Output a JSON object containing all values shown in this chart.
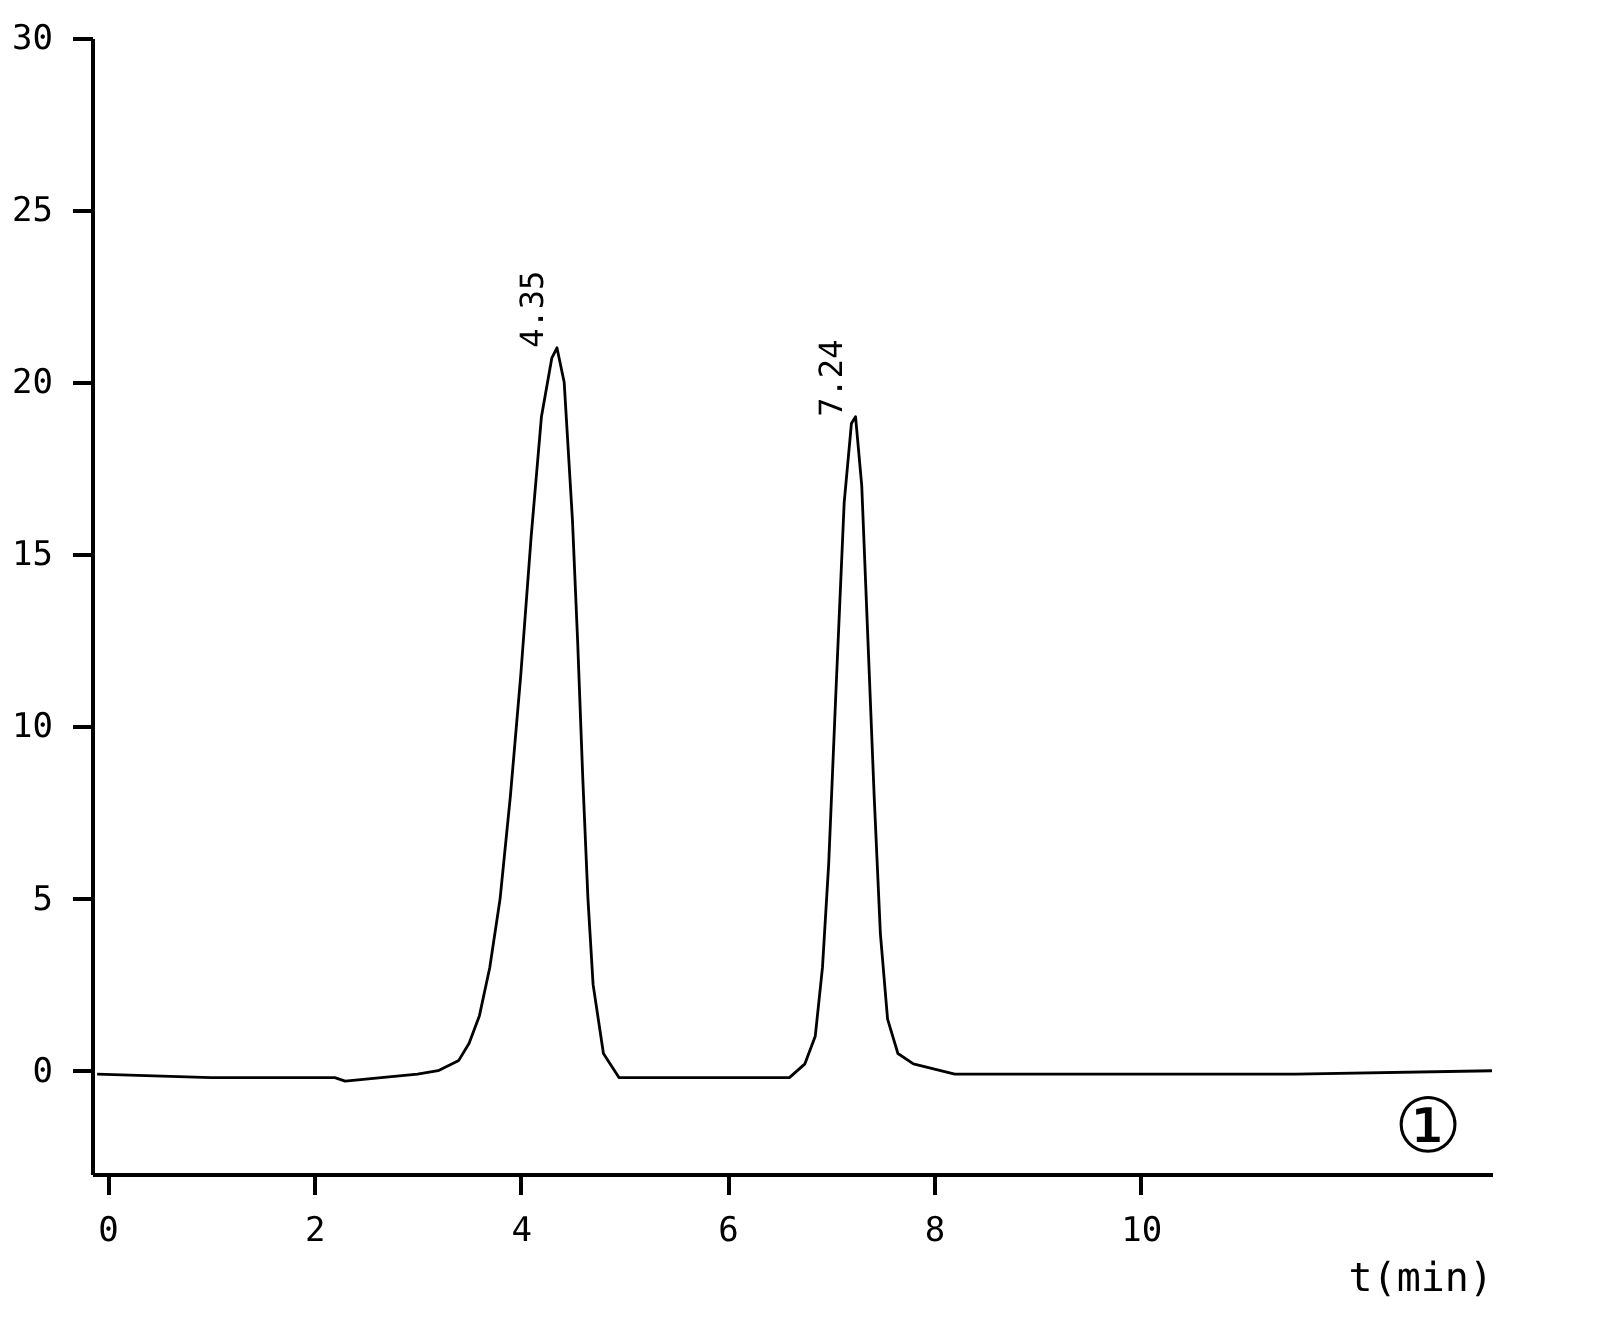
{
  "chart_data": {
    "type": "line",
    "xlabel": "t(min)",
    "x": [
      -0.1,
      1.0,
      2.2,
      2.3,
      3.0,
      3.2,
      3.4,
      3.5,
      3.6,
      3.7,
      3.8,
      3.9,
      4.0,
      4.1,
      4.2,
      4.3,
      4.35,
      4.42,
      4.5,
      4.55,
      4.6,
      4.65,
      4.7,
      4.8,
      4.95,
      5.5,
      6.6,
      6.75,
      6.85,
      6.92,
      6.98,
      7.05,
      7.13,
      7.2,
      7.24,
      7.3,
      7.36,
      7.42,
      7.48,
      7.55,
      7.65,
      7.8,
      8.2,
      10.0,
      11.5,
      13.4
    ],
    "series": [
      {
        "color": "#000000",
        "values": [
          -0.1,
          -0.2,
          -0.2,
          -0.3,
          -0.1,
          0.0,
          0.3,
          0.8,
          1.6,
          3.0,
          5.0,
          8.0,
          11.5,
          15.5,
          19.0,
          20.7,
          21.0,
          20.0,
          16.0,
          12.5,
          8.5,
          5.0,
          2.5,
          0.5,
          -0.2,
          -0.2,
          -0.2,
          0.2,
          1.0,
          3.0,
          6.0,
          11.0,
          16.5,
          18.8,
          19.0,
          17.0,
          12.5,
          8.0,
          4.0,
          1.5,
          0.5,
          0.2,
          -0.1,
          -0.1,
          -0.1,
          0.0
        ]
      }
    ],
    "annotations": [
      {
        "text": "4.35",
        "x": 4.35,
        "y": 21.0
      },
      {
        "text": "7.24",
        "x": 7.24,
        "y": 19.0
      },
      "①"
    ],
    "xlim": [
      -0.15,
      13.4
    ],
    "xticks": [
      0,
      2,
      4,
      6,
      8,
      10
    ],
    "ylim": [
      -3,
      30
    ],
    "yticks": [
      0,
      5,
      10,
      15,
      20,
      25,
      30
    ],
    "line_style": "solid"
  }
}
